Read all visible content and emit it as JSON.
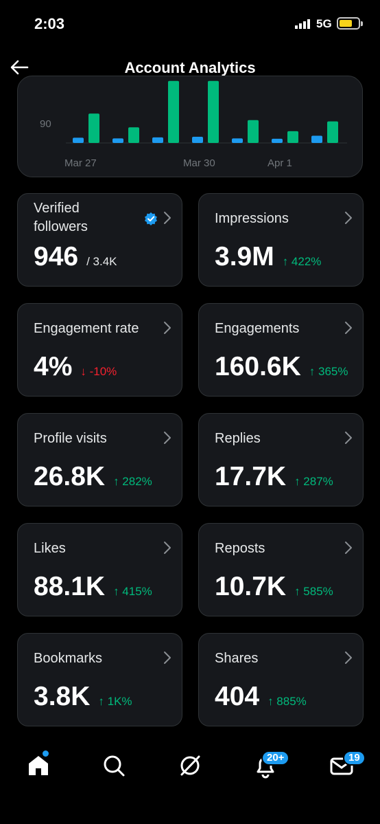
{
  "status_bar": {
    "time": "2:03",
    "network": "5G"
  },
  "header": {
    "title": "Account Analytics"
  },
  "chart_data": {
    "type": "bar",
    "categories": [
      "",
      "",
      "",
      "",
      "",
      "",
      "",
      ""
    ],
    "tick_labels": [
      "Mar 27",
      "Mar 30",
      "Apr 1"
    ],
    "y_ticks": [
      "90"
    ],
    "series": [
      {
        "values": [
          0.8,
          0.7,
          0.85,
          0.95,
          0.7,
          0.65,
          1.1,
          0
        ],
        "color": "#1d9bf0"
      },
      {
        "values": [
          4.5,
          2.4,
          9.5,
          9.5,
          3.5,
          1.8,
          3.3,
          0
        ],
        "color": "#00ba7c"
      }
    ]
  },
  "metrics": [
    {
      "label": "Verified followers",
      "value": "946",
      "total": "/ 3.4K",
      "verified_icon": "verified-badge-icon"
    },
    {
      "label": "Impressions",
      "value": "3.9M",
      "delta": "↑ 422%",
      "direction": "up"
    },
    {
      "label": "Engagement rate",
      "value": "4%",
      "delta": "↓ -10%",
      "direction": "down"
    },
    {
      "label": "Engagements",
      "value": "160.6K",
      "delta": "↑ 365%",
      "direction": "up"
    },
    {
      "label": "Profile visits",
      "value": "26.8K",
      "delta": "↑ 282%",
      "direction": "up"
    },
    {
      "label": "Replies",
      "value": "17.7K",
      "delta": "↑ 287%",
      "direction": "up"
    },
    {
      "label": "Likes",
      "value": "88.1K",
      "delta": "↑ 415%",
      "direction": "up"
    },
    {
      "label": "Reposts",
      "value": "10.7K",
      "delta": "↑ 585%",
      "direction": "up"
    },
    {
      "label": "Bookmarks",
      "value": "3.8K",
      "delta": "↑ 1K%",
      "direction": "up"
    },
    {
      "label": "Shares",
      "value": "404",
      "delta": "↑ 885%",
      "direction": "up"
    }
  ],
  "nav": {
    "items": [
      {
        "icon": "home-icon"
      },
      {
        "icon": "search-icon"
      },
      {
        "icon": "grok-icon"
      },
      {
        "icon": "bell-icon",
        "badge": "20+"
      },
      {
        "icon": "mail-icon",
        "badge": "19"
      }
    ]
  },
  "colors": {
    "accent": "#1d9bf0",
    "positive": "#00ba7c",
    "negative": "#f4212e",
    "card": "#16181c"
  }
}
